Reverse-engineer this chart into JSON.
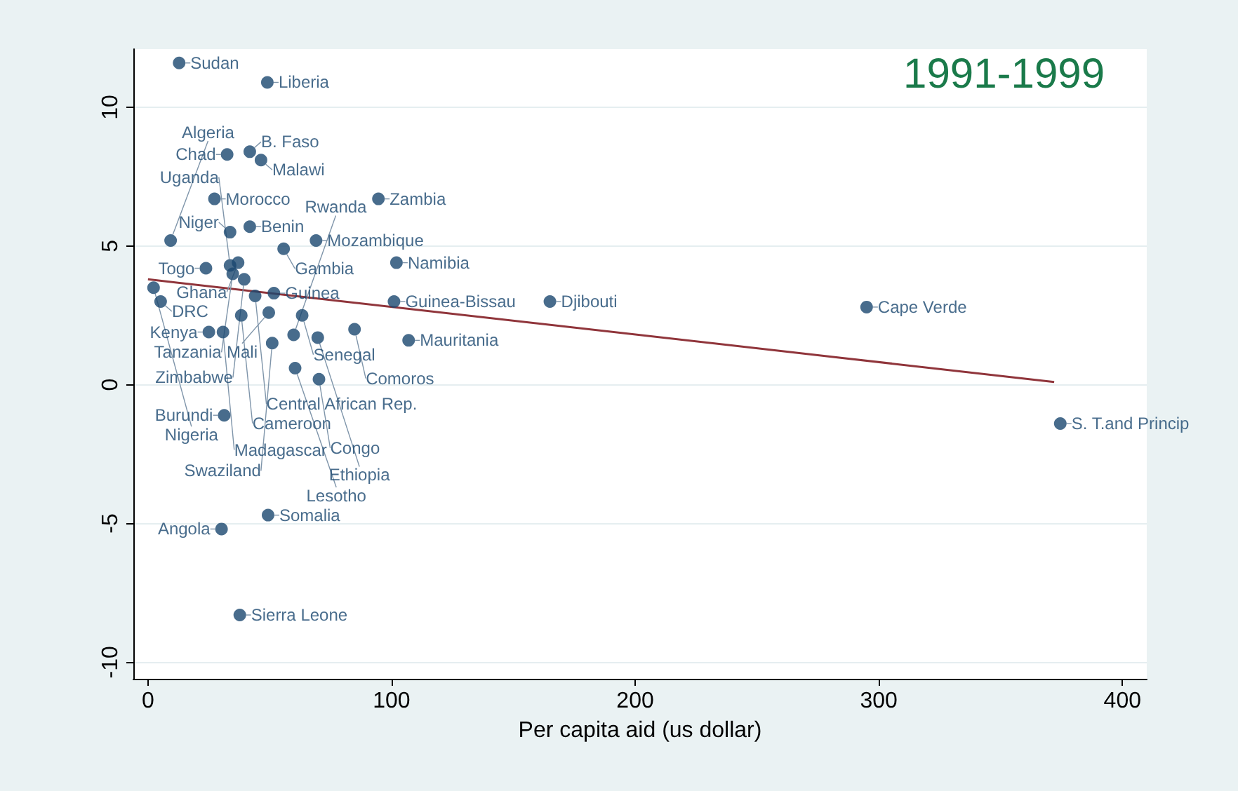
{
  "chart_data": {
    "type": "scatter",
    "xlabel": "Per capita aid (us dollar)",
    "annotations": [
      "1991-1999"
    ],
    "xlim": [
      -6,
      410
    ],
    "xticks": [
      0,
      100,
      200,
      300,
      400
    ],
    "ylim": [
      -10.6,
      12.1
    ],
    "yticks": [
      -10,
      -5,
      0,
      5,
      10
    ],
    "grid": "y",
    "series": [
      {
        "color": "#1a476f",
        "marker": "circle",
        "x": [
          12.8,
          49,
          32.5,
          41.8,
          46.4,
          27.3,
          94.6,
          41.8,
          33.7,
          9.3,
          69,
          55.7,
          102,
          23.8,
          37,
          33.7,
          34.8,
          39.5,
          2.3,
          5.2,
          44,
          51.7,
          49.6,
          101,
          165,
          295,
          38.3,
          63.3,
          84.8,
          30.8,
          25,
          51,
          59.8,
          69.7,
          107,
          60.4,
          70.2,
          31.3,
          49.3,
          30.2,
          37.7,
          374.5
        ],
        "values": [
          11.6,
          10.9,
          8.3,
          8.4,
          8.1,
          6.7,
          6.7,
          5.7,
          5.5,
          5.2,
          5.2,
          4.9,
          4.4,
          4.2,
          4.4,
          4.3,
          4.0,
          3.8,
          3.5,
          3.0,
          3.2,
          3.3,
          2.6,
          3.0,
          3.0,
          2.8,
          2.5,
          2.5,
          2.0,
          1.9,
          1.9,
          1.5,
          1.8,
          1.7,
          1.6,
          0.6,
          0.2,
          -1.1,
          -4.7,
          -5.2,
          -8.3,
          -1.4
        ],
        "value_labels": [
          "Sudan",
          "Liberia",
          "Chad",
          "B. Faso",
          "Malawi",
          "Morocco",
          "Zambia",
          "Benin",
          "Niger",
          "Algeria",
          "Mozambique",
          "Gambia",
          "Namibia",
          "Togo",
          "Ghana",
          "Uganda",
          "Tanzania",
          "Zimbabwe",
          "Nigeria",
          "DRC",
          "Central African Rep.",
          "Guinea",
          "Mali",
          "Guinea-Bissau",
          "Djibouti",
          "Cape Verde",
          "Cameroon",
          "Senegal",
          "Comoros",
          "Madagascar",
          "Kenya",
          "Swaziland",
          "Rwanda",
          "Ethiopia",
          "Mauritania",
          "Lesotho",
          "Congo",
          "Burundi",
          "Somalia",
          "Angola",
          "Sierra Leone",
          "S. T.and Princip"
        ]
      },
      {
        "type": "line",
        "marker": "none",
        "color": "#90353b",
        "x": [
          0,
          372
        ],
        "values": [
          3.8,
          0.1
        ]
      }
    ]
  }
}
